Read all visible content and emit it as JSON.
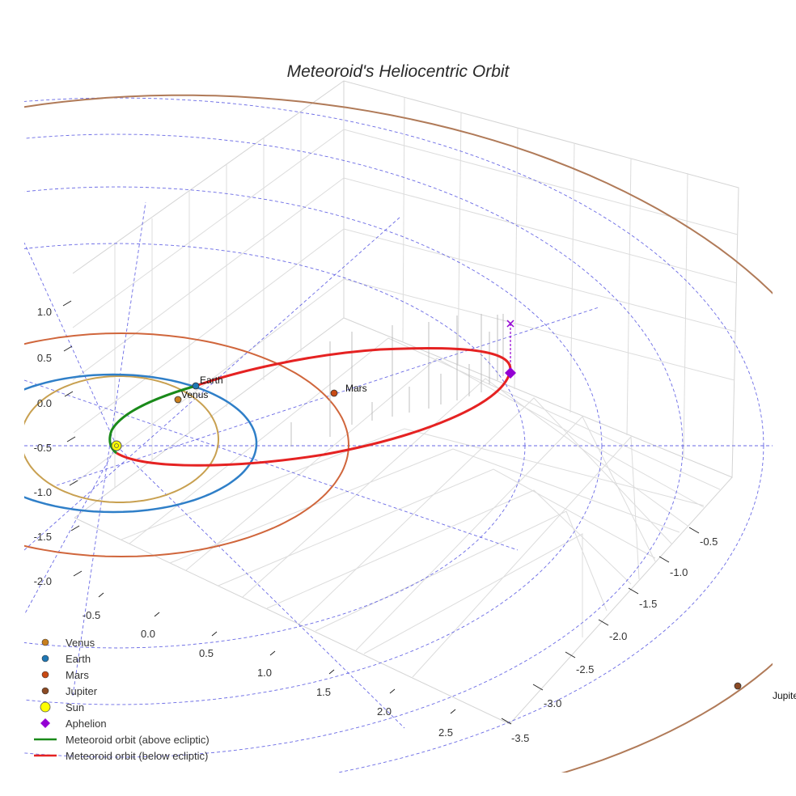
{
  "chart_data": {
    "type": "scatter",
    "title": "Meteoroid's Heliocentric Orbit",
    "axes": {
      "x": {
        "ticks": [
          "-0.5",
          "0.0",
          "0.5",
          "1.0",
          "1.5",
          "2.0",
          "2.5"
        ]
      },
      "y": {
        "ticks": [
          "-0.5",
          "-1.0",
          "-1.5",
          "-2.0",
          "-2.5",
          "-3.0",
          "-3.5"
        ]
      },
      "z": {
        "ticks": [
          "1.0",
          "0.5",
          "0.0",
          "-0.5",
          "-1.0",
          "-1.5",
          "-2.0"
        ]
      },
      "grid": true
    },
    "planet_labels": {
      "venus": "Venus",
      "earth": "Earth",
      "mars": "Mars",
      "jupiter": "Jupiter"
    },
    "colors": {
      "venus": "#c8a050",
      "earth": "#2f7fc8",
      "mars": "#d0663c",
      "jupiter": "#b07a58",
      "sun": "#ffff00",
      "aphelion": "#9400d3",
      "above": "#1a8a1a",
      "below": "#e52222",
      "guides": "#5050e0",
      "grid": "#d4d4d4"
    },
    "legend": {
      "placement": "bottom-left",
      "items": [
        {
          "label": "Venus",
          "marker": "circle",
          "color": "#c87f1e"
        },
        {
          "label": "Earth",
          "marker": "circle",
          "color": "#1f77b4"
        },
        {
          "label": "Mars",
          "marker": "circle",
          "color": "#c84a14"
        },
        {
          "label": "Jupiter",
          "marker": "circle",
          "color": "#8b4a24"
        },
        {
          "label": "Sun",
          "marker": "circle-large",
          "color": "#ffff00"
        },
        {
          "label": "Aphelion",
          "marker": "diamond",
          "color": "#9400d3"
        },
        {
          "label": "Meteoroid orbit (above ecliptic)",
          "marker": "line",
          "color": "#1a8a1a"
        },
        {
          "label": "Meteoroid orbit (below ecliptic)",
          "marker": "line",
          "color": "#e52222"
        }
      ]
    }
  }
}
